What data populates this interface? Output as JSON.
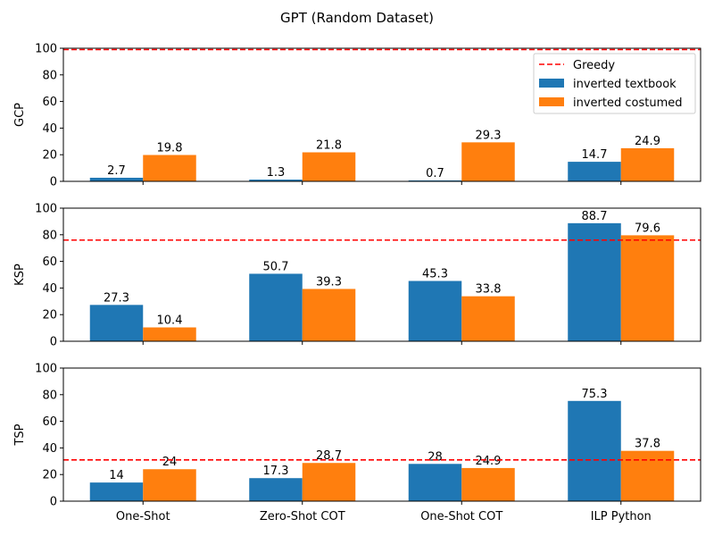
{
  "chart_data": {
    "type": "bar",
    "title": "GPT (Random Dataset)",
    "categories": [
      "One-Shot",
      "Zero-Shot COT",
      "One-Shot COT",
      "ILP Python"
    ],
    "ylim": [
      0,
      100
    ],
    "yticks": [
      "0",
      "20",
      "40",
      "60",
      "80",
      "100"
    ],
    "legend": {
      "placement": "top-right",
      "entries": [
        "Greedy",
        "inverted textbook",
        "inverted costumed"
      ]
    },
    "colors": {
      "inverted textbook": "#1f77b4",
      "inverted costumed": "#ff7f0e",
      "Greedy": "#ff0000"
    },
    "panels": [
      {
        "ylabel": "GCP",
        "greedy": 99,
        "series": [
          {
            "name": "inverted textbook",
            "values": [
              2.7,
              1.3,
              0.7,
              14.7
            ],
            "labels": [
              "2.7",
              "1.3",
              "0.7",
              "14.7"
            ]
          },
          {
            "name": "inverted costumed",
            "values": [
              19.8,
              21.8,
              29.3,
              24.9
            ],
            "labels": [
              "19.8",
              "21.8",
              "29.3",
              "24.9"
            ]
          }
        ]
      },
      {
        "ylabel": "KSP",
        "greedy": 76,
        "series": [
          {
            "name": "inverted textbook",
            "values": [
              27.3,
              50.7,
              45.3,
              88.7
            ],
            "labels": [
              "27.3",
              "50.7",
              "45.3",
              "88.7"
            ]
          },
          {
            "name": "inverted costumed",
            "values": [
              10.4,
              39.3,
              33.8,
              79.6
            ],
            "labels": [
              "10.4",
              "39.3",
              "33.8",
              "79.6"
            ]
          }
        ]
      },
      {
        "ylabel": "TSP",
        "greedy": 31,
        "series": [
          {
            "name": "inverted textbook",
            "values": [
              14,
              17.3,
              28,
              75.3
            ],
            "labels": [
              "14",
              "17.3",
              "28",
              "75.3"
            ]
          },
          {
            "name": "inverted costumed",
            "values": [
              24,
              28.7,
              24.9,
              37.8
            ],
            "labels": [
              "24",
              "28.7",
              "24.9",
              "37.8"
            ]
          }
        ]
      }
    ]
  }
}
